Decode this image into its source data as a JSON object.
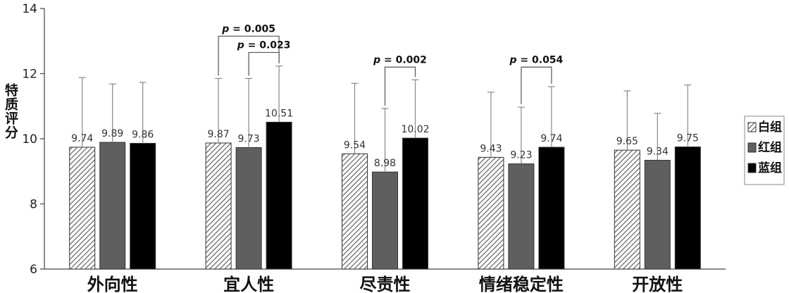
{
  "chart_data": {
    "type": "bar",
    "ylabel": "特质评分",
    "ylim": [
      6,
      14
    ],
    "yticks": [
      "6",
      "8",
      "10",
      "12",
      "14"
    ],
    "categories": [
      "外向性",
      "宜人性",
      "尽责性",
      "情绪稳定性",
      "开放性"
    ],
    "series": [
      {
        "name": "白组",
        "color": "#ffffff",
        "pattern": "diagonal-hatch",
        "values": [
          9.74,
          9.87,
          9.54,
          9.43,
          9.65
        ],
        "labels": [
          "9.74",
          "9.87",
          "9.54",
          "9.43",
          "9.65"
        ],
        "error_upper": [
          11.88,
          11.85,
          11.7,
          11.43,
          11.47
        ]
      },
      {
        "name": "红组",
        "color": "#5f5f5f",
        "pattern": "solid",
        "values": [
          9.89,
          9.73,
          8.98,
          9.23,
          9.34
        ],
        "labels": [
          "9.89",
          "9.73",
          "8.98",
          "9.23",
          "9.34"
        ],
        "error_upper": [
          11.68,
          11.85,
          10.93,
          10.97,
          10.78
        ]
      },
      {
        "name": "蓝组",
        "color": "#000000",
        "pattern": "solid",
        "values": [
          9.86,
          10.51,
          10.02,
          9.74,
          9.75
        ],
        "labels": [
          "9.86",
          "10.51",
          "10.02",
          "9.74",
          "9.75"
        ],
        "error_upper": [
          11.73,
          12.23,
          11.81,
          11.6,
          11.65
        ]
      }
    ],
    "annotations": [
      {
        "category": 1,
        "from_series": 0,
        "to_series": 2,
        "p_label": "p",
        "text": " = 0.005",
        "y": 13.15
      },
      {
        "category": 1,
        "from_series": 1,
        "to_series": 2,
        "p_label": "p",
        "text": " = 0.023",
        "y": 12.65
      },
      {
        "category": 2,
        "from_series": 1,
        "to_series": 2,
        "p_label": "p",
        "text": " = 0.002",
        "y": 12.2
      },
      {
        "category": 3,
        "from_series": 1,
        "to_series": 2,
        "p_label": "p",
        "text": " = 0.054",
        "y": 12.2
      }
    ],
    "legend": {
      "position": "right",
      "items": [
        "白组",
        "红组",
        "蓝组"
      ]
    }
  }
}
